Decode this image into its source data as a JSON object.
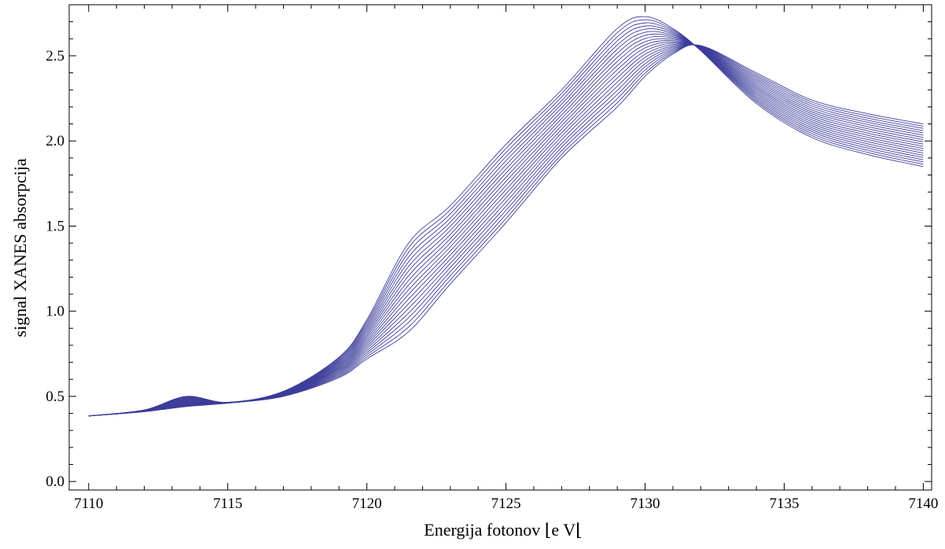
{
  "chart_data": {
    "type": "line",
    "xlabel": "Energija fotonov ⌊e V⌊",
    "ylabel": "signal XANES absorpcija",
    "xlim": [
      7109.3,
      7140.3
    ],
    "ylim": [
      -0.05,
      2.8
    ],
    "x_ticks": [
      "7110",
      "7115",
      "7120",
      "7125",
      "7130",
      "7135",
      "7140"
    ],
    "y_ticks": [
      "0.0",
      "0.5",
      "1.0",
      "1.5",
      "2.0",
      "2.5"
    ],
    "line_color": "#3c3c9a",
    "grid": false,
    "series_count": 20,
    "series_description_x": [
      7110,
      7112,
      7113.5,
      7115,
      7117,
      7119,
      7120,
      7121.5,
      7123,
      7125,
      7127,
      7129,
      7130,
      7131,
      7132,
      7134,
      7136,
      7138,
      7140
    ],
    "first_series_values": [
      0.385,
      0.42,
      0.5,
      0.465,
      0.53,
      0.73,
      0.95,
      1.4,
      1.62,
      1.98,
      2.3,
      2.66,
      2.73,
      2.66,
      2.53,
      2.22,
      2.02,
      1.92,
      1.85
    ],
    "last_series_values": [
      0.385,
      0.41,
      0.44,
      0.46,
      0.5,
      0.61,
      0.72,
      0.88,
      1.16,
      1.52,
      1.9,
      2.2,
      2.38,
      2.51,
      2.56,
      2.4,
      2.24,
      2.16,
      2.1
    ]
  }
}
